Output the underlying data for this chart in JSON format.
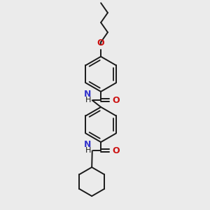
{
  "bg_color": "#ebebeb",
  "bond_color": "#1a1a1a",
  "N_color": "#3333cc",
  "O_color": "#cc1111",
  "lw": 1.4,
  "figsize": [
    3.0,
    3.0
  ],
  "dpi": 100,
  "xlim": [
    0,
    10
  ],
  "ylim": [
    0,
    10
  ]
}
